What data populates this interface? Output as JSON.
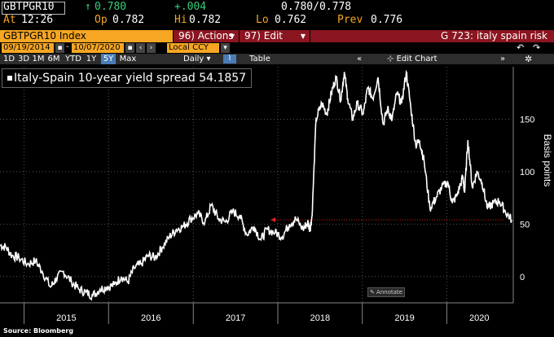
{
  "quote": {
    "ticker": "GBTPGR10",
    "last_arrow": "↑",
    "last": "0.780",
    "change": "+.004",
    "bid_ask": "0.780/0.778",
    "at_label": "At",
    "time": "12:26",
    "op_label": "Op",
    "open": "0.782",
    "hi_label": "Hi",
    "high": "0.782",
    "lo_label": "Lo",
    "low": "0.762",
    "prev_label": "Prev",
    "prev": "0.776"
  },
  "toolbar": {
    "security": "GBTPGR10 Index",
    "actions_label": "96) Actions",
    "edit_label": "97) Edit",
    "page_title": "G 723: italy spain risk",
    "start_date": "09/19/2014",
    "end_date": "10/07/2020",
    "currency": "Local CCY",
    "ranges": [
      "1D",
      "3D",
      "1M",
      "6M",
      "YTD",
      "1Y",
      "5Y",
      "Max"
    ],
    "selected_range": "5Y",
    "freq": "Daily",
    "table_label": "Table",
    "edit_chart_label": "Edit Chart"
  },
  "legend": {
    "label": "Italy-Spain 10-year yield spread 54.1857"
  },
  "annotate_label": "Annotate",
  "source": "Source: Bloomberg",
  "colors": {
    "amber": "#f6a623",
    "red": "#8b1520",
    "up": "#33d17a",
    "selected": "#4a7db8"
  },
  "chart_data": {
    "type": "line",
    "ylabel": "Basis points",
    "ylim": [
      -25,
      200
    ],
    "yticks": [
      0,
      50,
      100,
      150
    ],
    "x_tick_labels": [
      "2015",
      "2016",
      "2017",
      "2018",
      "2019",
      "2020"
    ],
    "xlim": [
      "2014-09-19",
      "2020-10-07"
    ],
    "last_value": 54.1857,
    "reference_line": {
      "value": 54.1857,
      "color": "#e02020",
      "style": "dotted"
    },
    "series": [
      {
        "name": "Italy-Spain 10-year yield spread",
        "x": [
          "2014-09-19",
          "2014-10-15",
          "2014-11-10",
          "2014-12-10",
          "2015-01-15",
          "2015-02-20",
          "2015-03-20",
          "2015-04-25",
          "2015-05-20",
          "2015-06-20",
          "2015-07-25",
          "2015-08-25",
          "2015-09-25",
          "2015-10-25",
          "2015-11-25",
          "2015-12-25",
          "2016-01-25",
          "2016-02-25",
          "2016-03-25",
          "2016-04-20",
          "2016-05-20",
          "2016-06-20",
          "2016-07-20",
          "2016-08-20",
          "2016-09-20",
          "2016-10-20",
          "2016-11-20",
          "2016-12-20",
          "2017-01-20",
          "2017-02-20",
          "2017-03-20",
          "2017-04-20",
          "2017-05-20",
          "2017-06-20",
          "2017-07-20",
          "2017-08-20",
          "2017-09-20",
          "2017-10-20",
          "2017-11-15",
          "2017-12-20",
          "2018-01-20",
          "2018-02-20",
          "2018-03-20",
          "2018-04-20",
          "2018-05-10",
          "2018-05-20",
          "2018-05-29",
          "2018-06-15",
          "2018-07-10",
          "2018-08-01",
          "2018-08-20",
          "2018-09-10",
          "2018-09-30",
          "2018-10-15",
          "2018-10-30",
          "2018-11-20",
          "2018-12-10",
          "2019-01-05",
          "2019-01-25",
          "2019-02-15",
          "2019-03-10",
          "2019-04-01",
          "2019-04-20",
          "2019-05-10",
          "2019-05-30",
          "2019-06-20",
          "2019-07-10",
          "2019-07-30",
          "2019-08-20",
          "2019-09-05",
          "2019-09-25",
          "2019-10-20",
          "2019-11-15",
          "2019-12-10",
          "2020-01-05",
          "2020-01-25",
          "2020-02-15",
          "2020-03-10",
          "2020-03-18",
          "2020-04-01",
          "2020-04-20",
          "2020-05-10",
          "2020-06-01",
          "2020-06-25",
          "2020-07-20",
          "2020-08-15",
          "2020-09-10",
          "2020-10-07"
        ],
        "y": [
          30,
          28,
          20,
          18,
          12,
          15,
          5,
          -10,
          -2,
          5,
          -5,
          -12,
          -15,
          -18,
          -12,
          -10,
          -8,
          0,
          -5,
          8,
          12,
          20,
          18,
          28,
          38,
          45,
          48,
          55,
          60,
          52,
          68,
          55,
          52,
          62,
          58,
          40,
          48,
          35,
          45,
          42,
          38,
          50,
          55,
          45,
          52,
          45,
          58,
          150,
          165,
          155,
          175,
          190,
          168,
          195,
          170,
          150,
          165,
          155,
          180,
          170,
          190,
          145,
          160,
          150,
          175,
          165,
          195,
          160,
          125,
          130,
          110,
          65,
          75,
          85,
          90,
          70,
          78,
          95,
          80,
          130,
          85,
          100,
          90,
          65,
          70,
          72,
          62,
          54.1857
        ]
      }
    ]
  }
}
